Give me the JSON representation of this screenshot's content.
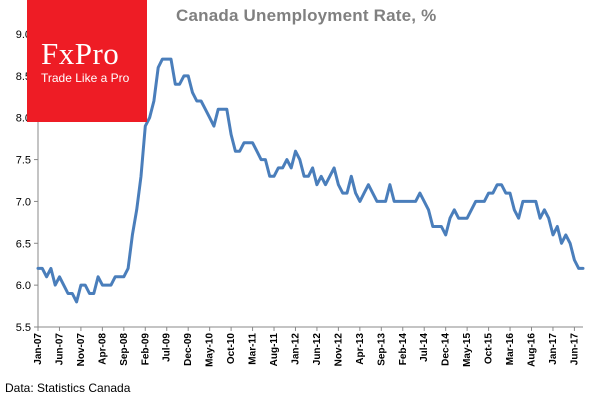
{
  "logo": {
    "brand": "FxPro",
    "tagline": "Trade Like a Pro",
    "color": "#ee1c25"
  },
  "source": "Data: Statistics Canada",
  "chart_data": {
    "type": "line",
    "title": "Canada  Unemployment Rate, %",
    "xlabel": "",
    "ylabel": "",
    "ylim": [
      5.5,
      9.0
    ],
    "y_ticks": [
      "5.5",
      "6.0",
      "6.5",
      "7.0",
      "7.5",
      "8.0",
      "8.5",
      "9.0"
    ],
    "grid": false,
    "line_color": "#4a7ebb",
    "x_tick_labels": [
      "Jan-07",
      "Jun-07",
      "Nov-07",
      "Apr-08",
      "Sep-08",
      "Feb-09",
      "Jul-09",
      "Dec-09",
      "May-10",
      "Oct-10",
      "Mar-11",
      "Aug-11",
      "Jan-12",
      "Jun-12",
      "Nov-12",
      "Apr-13",
      "Sep-13",
      "Feb-14",
      "Jul-14",
      "Dec-14",
      "May-15",
      "Oct-15",
      "Mar-16",
      "Aug-16",
      "Jan-17",
      "Jun-17"
    ],
    "x_start": "Jan-07",
    "series": [
      {
        "values": [
          6.2,
          6.2,
          6.1,
          6.2,
          6.0,
          6.1,
          6.0,
          5.9,
          5.9,
          5.8,
          6.0,
          6.0,
          5.9,
          5.9,
          6.1,
          6.0,
          6.0,
          6.0,
          6.1,
          6.1,
          6.1,
          6.2,
          6.6,
          6.9,
          7.3,
          7.9,
          8.0,
          8.2,
          8.6,
          8.7,
          8.7,
          8.7,
          8.4,
          8.4,
          8.5,
          8.5,
          8.3,
          8.2,
          8.2,
          8.1,
          8.0,
          7.9,
          8.1,
          8.1,
          8.1,
          7.8,
          7.6,
          7.6,
          7.7,
          7.7,
          7.7,
          7.6,
          7.5,
          7.5,
          7.3,
          7.3,
          7.4,
          7.4,
          7.5,
          7.4,
          7.6,
          7.5,
          7.3,
          7.3,
          7.4,
          7.2,
          7.3,
          7.2,
          7.3,
          7.4,
          7.2,
          7.1,
          7.1,
          7.3,
          7.1,
          7.0,
          7.1,
          7.2,
          7.1,
          7.0,
          7.0,
          7.0,
          7.2,
          7.0,
          7.0,
          7.0,
          7.0,
          7.0,
          7.0,
          7.1,
          7.0,
          6.9,
          6.7,
          6.7,
          6.7,
          6.6,
          6.8,
          6.9,
          6.8,
          6.8,
          6.8,
          6.9,
          7.0,
          7.0,
          7.0,
          7.1,
          7.1,
          7.2,
          7.2,
          7.1,
          7.1,
          6.9,
          6.8,
          7.0,
          7.0,
          7.0,
          7.0,
          6.8,
          6.9,
          6.8,
          6.6,
          6.7,
          6.5,
          6.6,
          6.5,
          6.3,
          6.2,
          6.2
        ]
      }
    ]
  }
}
